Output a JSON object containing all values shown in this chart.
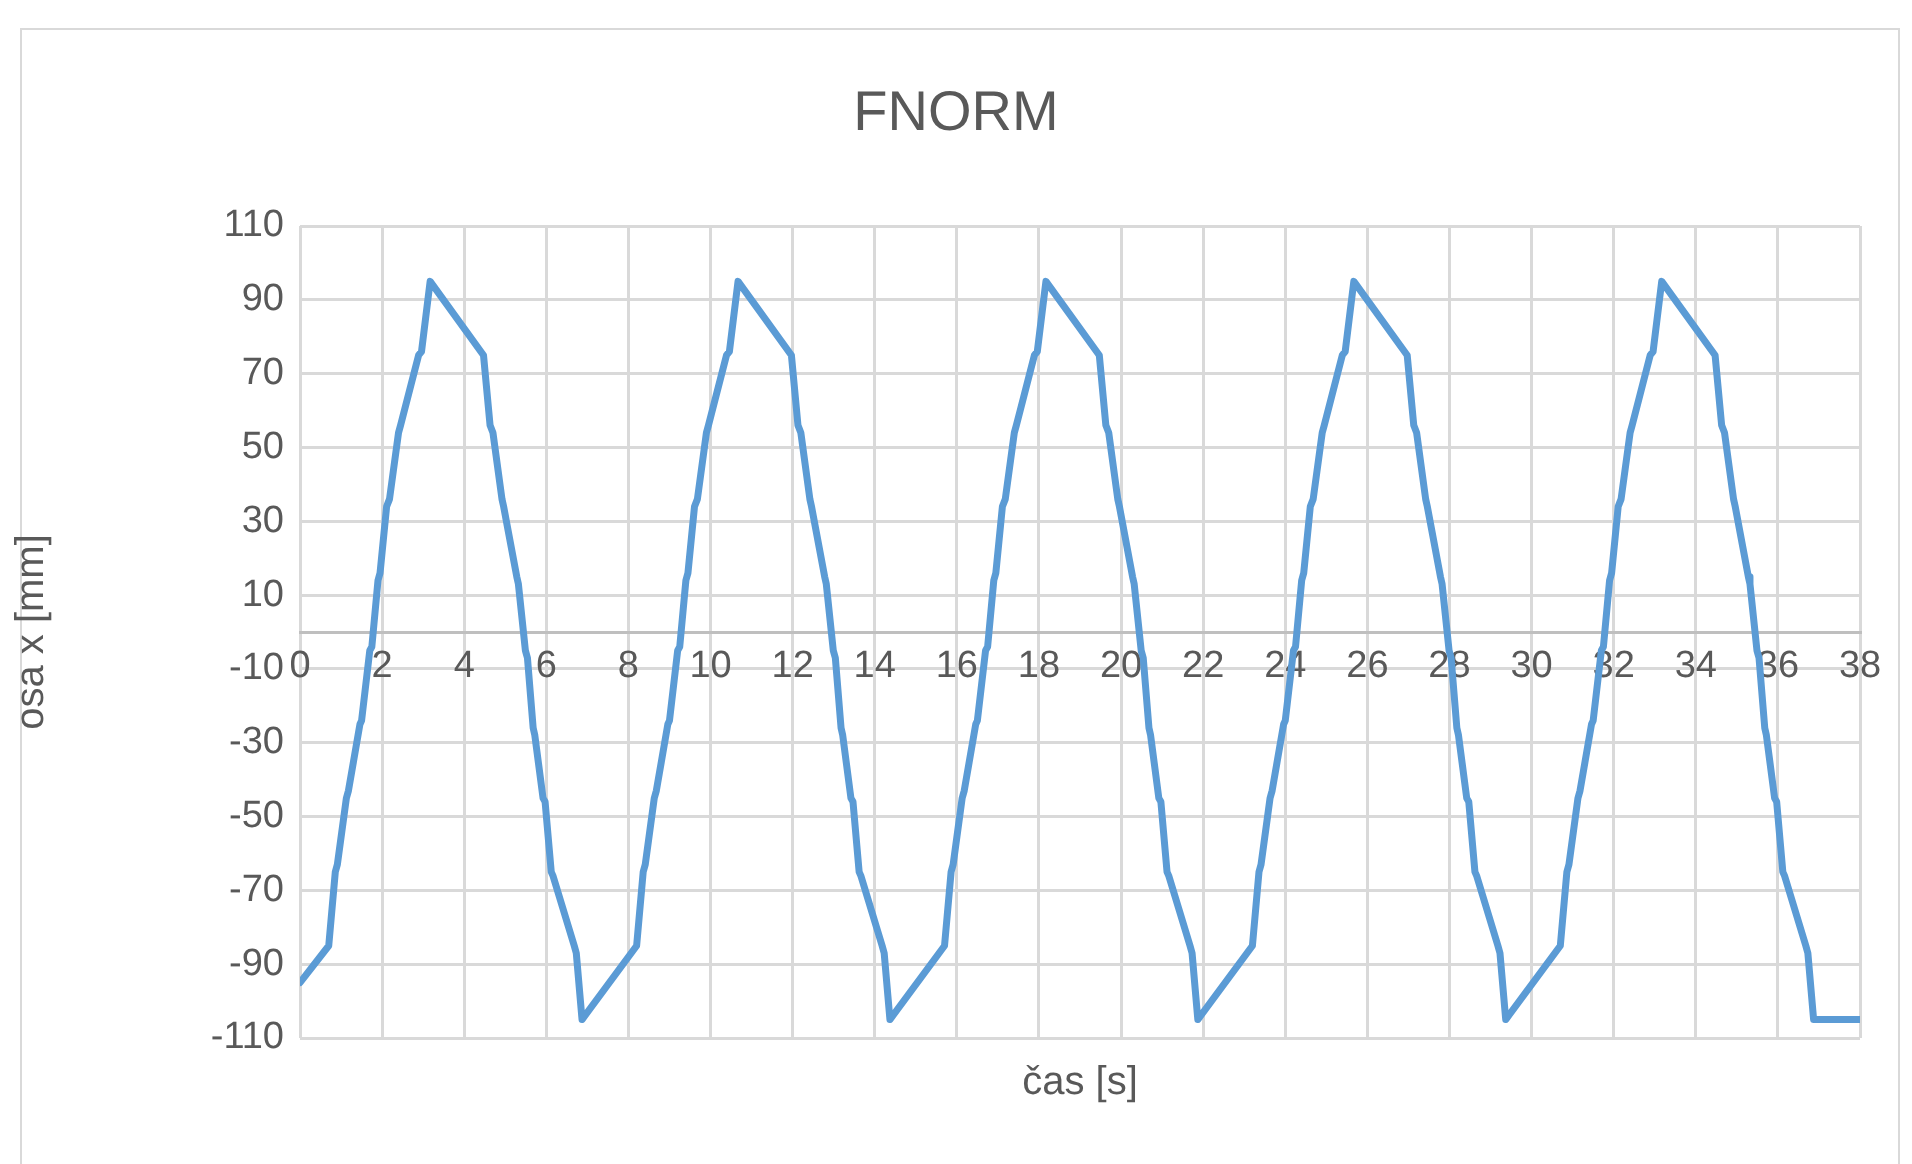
{
  "chart_data": {
    "type": "line",
    "title": "FNORM",
    "xlabel": "čas [s]",
    "ylabel": "osa x [mm]",
    "x": [
      0,
      0.7,
      0.86,
      0.91,
      1.13,
      1.18,
      1.46,
      1.5,
      1.7,
      1.75,
      1.9,
      1.95,
      2.11,
      2.18,
      2.4,
      2.45,
      2.89,
      2.96,
      3.17,
      4.47,
      4.63,
      4.7,
      4.92,
      4.96,
      5.28,
      5.32,
      5.49,
      5.54,
      5.68,
      5.72,
      5.92,
      5.97,
      6.12,
      6.16,
      6.68,
      6.73,
      6.87,
      8.2,
      8.36,
      8.41,
      8.63,
      8.68,
      8.96,
      9.0,
      9.2,
      9.25,
      9.4,
      9.45,
      9.61,
      9.68,
      9.9,
      9.95,
      10.39,
      10.46,
      10.67,
      11.97,
      12.13,
      12.2,
      12.42,
      12.46,
      12.78,
      12.82,
      12.99,
      13.04,
      13.18,
      13.22,
      13.42,
      13.47,
      13.62,
      13.66,
      14.18,
      14.23,
      14.37,
      15.7,
      15.86,
      15.91,
      16.13,
      16.18,
      16.46,
      16.5,
      16.7,
      16.75,
      16.9,
      16.95,
      17.11,
      17.18,
      17.4,
      17.45,
      17.89,
      17.96,
      18.17,
      19.47,
      19.63,
      19.7,
      19.92,
      19.96,
      20.28,
      20.32,
      20.49,
      20.54,
      20.68,
      20.72,
      20.92,
      20.97,
      21.12,
      21.16,
      21.68,
      21.73,
      21.87,
      23.2,
      23.36,
      23.41,
      23.63,
      23.68,
      23.96,
      24.0,
      24.2,
      24.25,
      24.4,
      24.45,
      24.61,
      24.68,
      24.9,
      24.95,
      25.39,
      25.46,
      25.67,
      26.97,
      27.13,
      27.2,
      27.42,
      27.46,
      27.78,
      27.82,
      27.99,
      28.04,
      28.18,
      28.22,
      28.42,
      28.47,
      28.62,
      28.66,
      29.18,
      29.23,
      29.37,
      30.7,
      30.86,
      30.91,
      31.13,
      31.18,
      31.46,
      31.5,
      31.7,
      31.75,
      31.9,
      31.95,
      32.11,
      32.18,
      32.4,
      32.45,
      32.89,
      32.96,
      33.17,
      34.47,
      34.63,
      34.7,
      34.92,
      34.96,
      35.28,
      35.32,
      35.49,
      35.54,
      35.68,
      35.72,
      35.92,
      35.97,
      36.12,
      36.16,
      36.68,
      36.73,
      36.87,
      38
    ],
    "series": [
      {
        "color": "#5b9bd5",
        "values": [
          -95,
          -85,
          -65,
          -63,
          -45,
          -43,
          -25,
          -24,
          -5,
          -4,
          14,
          16,
          34,
          36,
          54,
          56,
          75,
          76,
          95,
          75,
          56,
          54,
          36,
          34,
          15,
          13,
          -5,
          -7,
          -26,
          -28,
          -45,
          -46,
          -65,
          -66,
          -85,
          -87,
          -105,
          -85,
          -65,
          -63,
          -45,
          -43,
          -25,
          -24,
          -5,
          -4,
          14,
          16,
          34,
          36,
          54,
          56,
          75,
          76,
          95,
          75,
          56,
          54,
          36,
          34,
          15,
          13,
          -5,
          -7,
          -26,
          -28,
          -45,
          -46,
          -65,
          -66,
          -85,
          -87,
          -105,
          -85,
          -65,
          -63,
          -45,
          -43,
          -25,
          -24,
          -5,
          -4,
          14,
          16,
          34,
          36,
          54,
          56,
          75,
          76,
          95,
          75,
          56,
          54,
          36,
          34,
          15,
          13,
          -5,
          -7,
          -26,
          -28,
          -45,
          -46,
          -65,
          -66,
          -85,
          -87,
          -105,
          -85,
          -65,
          -63,
          -45,
          -43,
          -25,
          -24,
          -5,
          -4,
          14,
          16,
          34,
          36,
          54,
          56,
          75,
          76,
          95,
          75,
          56,
          54,
          36,
          34,
          15,
          13,
          -5,
          -7,
          -26,
          -28,
          -45,
          -46,
          -65,
          -66,
          -85,
          -87,
          -105,
          -85,
          -65,
          -63,
          -45,
          -43,
          -25,
          -24,
          -5,
          -4,
          14,
          16,
          34,
          36,
          54,
          56,
          75,
          76,
          95,
          75,
          56,
          54,
          36,
          34,
          15,
          13,
          -5,
          -7,
          -26,
          -28,
          -45,
          -46,
          -65,
          -66,
          -85,
          -87,
          -105,
          -105
        ]
      }
    ],
    "xlim": [
      0,
      38
    ],
    "xticks": [
      0,
      2,
      4,
      6,
      8,
      10,
      12,
      14,
      16,
      18,
      20,
      22,
      24,
      26,
      28,
      30,
      32,
      34,
      36,
      38
    ],
    "ylim": [
      -110,
      110
    ],
    "yticks": [
      -110,
      -90,
      -70,
      -50,
      -30,
      -10,
      10,
      30,
      50,
      70,
      90,
      110
    ],
    "grid": true,
    "marker": "none"
  }
}
